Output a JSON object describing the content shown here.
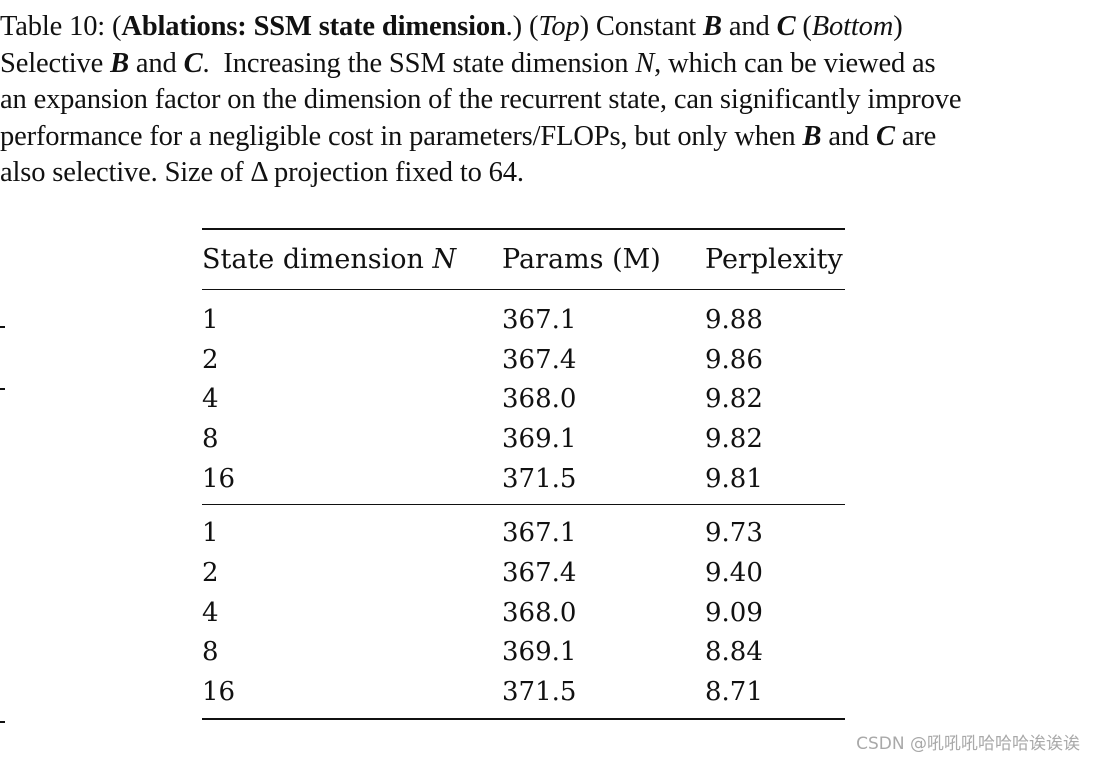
{
  "caption": {
    "label": "Table 10: (",
    "bold_title": "Ablations: SSM state dimension",
    "after_title": ".) (",
    "top_word": "Top",
    "constant_text": ") Constant ",
    "var_b": "B",
    "and_word": " and ",
    "var_c": "C",
    "space": " (",
    "bottom_word": "Bottom",
    "close_paren": ")",
    "selective_text": "Selective ",
    "period": ".",
    "line2_rest": "Increasing the SSM state dimension ",
    "var_n": "N",
    "line2_tail": ", which can be viewed as",
    "line3": "an expansion factor on the dimension of the recurrent state, can significantly improve",
    "line4_start": "performance for a negligible cost in parameters/FLOPs, but only when ",
    "line4_end": " are",
    "line5": "also selective. Size of Δ projection fixed to 64."
  },
  "table": {
    "headers": [
      "State dimension ",
      "Params (M)",
      "Perplexity"
    ],
    "header_var": "N",
    "top_rows": [
      [
        "1",
        "367.1",
        "9.88"
      ],
      [
        "2",
        "367.4",
        "9.86"
      ],
      [
        "4",
        "368.0",
        "9.82"
      ],
      [
        "8",
        "369.1",
        "9.82"
      ],
      [
        "16",
        "371.5",
        "9.81"
      ]
    ],
    "bottom_rows": [
      [
        "1",
        "367.1",
        "9.73"
      ],
      [
        "2",
        "367.4",
        "9.40"
      ],
      [
        "4",
        "368.0",
        "9.09"
      ],
      [
        "8",
        "369.1",
        "8.84"
      ],
      [
        "16",
        "371.5",
        "8.71"
      ]
    ]
  },
  "watermark": "CSDN @吼吼吼哈哈哈诶诶诶"
}
